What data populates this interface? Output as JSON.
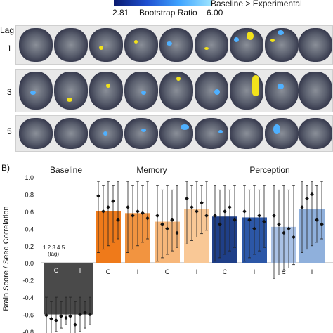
{
  "panel_a": {
    "legend_label": "Baseline > Experimental",
    "colorbar_min": "2.81",
    "colorbar_title": "Bootstrap Ratio",
    "colorbar_max": "6.00",
    "lag_header": "Lag",
    "rows": [
      "1",
      "3",
      "5"
    ]
  },
  "panel_b": {
    "label": "B)",
    "groups": [
      "Baseline",
      "Memory",
      "Perception"
    ],
    "lag_note_1": "1 2 3 4 5",
    "lag_note_2": "(lag)"
  },
  "chart_data": {
    "type": "bar",
    "ylabel": "Brain Score / Seed Correlation",
    "ylim": [
      -0.8,
      1.0
    ],
    "yticks": [
      "-0.8",
      "-0.6",
      "-0.4",
      "-0.2",
      "0.0",
      "0.2",
      "0.4",
      "0.6",
      "0.8",
      "1.0"
    ],
    "categories": [
      "C",
      "I",
      "C",
      "I",
      "C",
      "I",
      "C",
      "I",
      "C",
      "I"
    ],
    "bar_values": [
      -0.6,
      -0.6,
      0.6,
      0.58,
      0.48,
      0.63,
      0.54,
      0.53,
      0.42,
      0.63
    ],
    "bar_colors": [
      "#4a4a4a",
      "#4a4a4a",
      "#ef7a1a",
      "#f29440",
      "#f7b77a",
      "#f9c896",
      "#1f3f88",
      "#2c57a7",
      "#a9c1e5",
      "#8fb0dc"
    ],
    "points": [
      [
        -0.61,
        -0.65,
        -0.67,
        -0.62,
        -0.64
      ],
      [
        -0.62,
        -0.72,
        -0.6,
        -0.58,
        -0.6
      ],
      [
        0.78,
        0.6,
        0.65,
        0.72,
        0.5
      ],
      [
        0.65,
        0.55,
        0.6,
        0.58,
        0.52
      ],
      [
        0.55,
        0.45,
        0.4,
        0.5,
        0.35
      ],
      [
        0.75,
        0.65,
        0.6,
        0.7,
        0.55
      ],
      [
        0.55,
        0.45,
        0.6,
        0.65,
        0.5
      ],
      [
        0.6,
        0.5,
        0.4,
        0.55,
        0.48
      ],
      [
        0.55,
        0.45,
        0.35,
        0.4,
        0.3
      ],
      [
        0.65,
        0.75,
        0.8,
        0.5,
        0.45
      ]
    ],
    "error_low": [
      -0.8,
      -0.8,
      0.2,
      0.2,
      0.1,
      0.3,
      0.1,
      0.1,
      -0.1,
      0.2
    ],
    "error_high": [
      -0.4,
      -0.4,
      0.95,
      0.95,
      0.9,
      0.95,
      0.9,
      0.9,
      0.9,
      0.95
    ]
  }
}
